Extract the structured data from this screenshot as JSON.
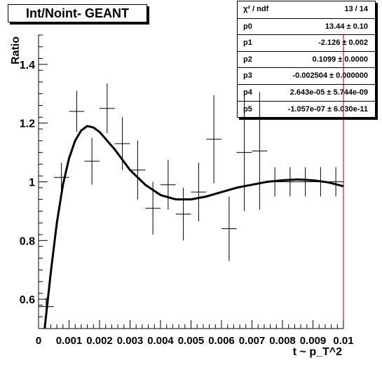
{
  "title": "Int/Noint- GEANT",
  "stats": {
    "rows": [
      {
        "name": "χ² / ndf",
        "value": "13 / 14"
      },
      {
        "name": "p0",
        "value": "13.44 ± 0.10"
      },
      {
        "name": "p1",
        "value": "-2.126 ± 0.002"
      },
      {
        "name": "p2",
        "value": "0.1099 ± 0.0000"
      },
      {
        "name": "p3",
        "value": "-0.002504 ± 0.000000"
      },
      {
        "name": "p4",
        "value": "2.643e-05 ± 5.744e-09"
      },
      {
        "name": "p5",
        "value": "-1.057e-07 ± 6.030e-11"
      }
    ]
  },
  "colors": {
    "line": "#000000",
    "frame": "#000000",
    "right_axis": "#8b0000"
  },
  "chart_data": {
    "type": "scatter",
    "title": "Int/Noint- GEANT",
    "xlabel": "t ~ p_T^2",
    "ylabel": "Ratio",
    "xlim": [
      0,
      0.01
    ],
    "ylim": [
      0.5,
      1.5
    ],
    "x_ticks": [
      0,
      0.001,
      0.002,
      0.003,
      0.004,
      0.005,
      0.006,
      0.007,
      0.008,
      0.009,
      0.01
    ],
    "x_tick_labels": [
      "0",
      "0.001",
      "0.002",
      "0.003",
      "0.004",
      "0.005",
      "0.006",
      "0.007",
      "0.008",
      "0.009",
      "0.01"
    ],
    "y_ticks": [
      0.6,
      0.8,
      1,
      1.2,
      1.4
    ],
    "y_tick_labels": [
      "0.6",
      "0.8",
      "1",
      "1.2",
      "1.4"
    ],
    "points": [
      {
        "x": 0.00025,
        "y": 0.575,
        "xerr": 0.00025,
        "yerr": 0.03
      },
      {
        "x": 0.00075,
        "y": 1.015,
        "xerr": 0.00025,
        "yerr": 0.05
      },
      {
        "x": 0.00125,
        "y": 1.24,
        "xerr": 0.00025,
        "yerr": 0.07
      },
      {
        "x": 0.00175,
        "y": 1.07,
        "xerr": 0.00025,
        "yerr": 0.08
      },
      {
        "x": 0.00225,
        "y": 1.25,
        "xerr": 0.00025,
        "yerr": 0.085
      },
      {
        "x": 0.00275,
        "y": 1.13,
        "xerr": 0.00025,
        "yerr": 0.09
      },
      {
        "x": 0.00325,
        "y": 1.04,
        "xerr": 0.00025,
        "yerr": 0.1
      },
      {
        "x": 0.00375,
        "y": 0.91,
        "xerr": 0.00025,
        "yerr": 0.09
      },
      {
        "x": 0.00425,
        "y": 0.99,
        "xerr": 0.00025,
        "yerr": 0.085
      },
      {
        "x": 0.00475,
        "y": 0.89,
        "xerr": 0.00025,
        "yerr": 0.09
      },
      {
        "x": 0.00525,
        "y": 0.965,
        "xerr": 0.00025,
        "yerr": 0.1
      },
      {
        "x": 0.00575,
        "y": 1.145,
        "xerr": 0.00025,
        "yerr": 0.15
      },
      {
        "x": 0.00625,
        "y": 0.84,
        "xerr": 0.00025,
        "yerr": 0.11
      },
      {
        "x": 0.00675,
        "y": 1.1,
        "xerr": 0.00025,
        "yerr": 0.2
      },
      {
        "x": 0.00725,
        "y": 1.105,
        "xerr": 0.00025,
        "yerr": 0.2
      },
      {
        "x": 0.00775,
        "y": 1.0,
        "xerr": 0.00025,
        "yerr": 0.05
      },
      {
        "x": 0.00825,
        "y": 1.0,
        "xerr": 0.00025,
        "yerr": 0.05
      },
      {
        "x": 0.00875,
        "y": 1.0,
        "xerr": 0.00025,
        "yerr": 0.05
      },
      {
        "x": 0.00925,
        "y": 1.0,
        "xerr": 0.00025,
        "yerr": 0.05
      },
      {
        "x": 0.00975,
        "y": 1.0,
        "xerr": 0.00025,
        "yerr": 0.05
      }
    ],
    "fit_curve": {
      "x": [
        0.0002,
        0.0004,
        0.0006,
        0.0008,
        0.001,
        0.0012,
        0.0014,
        0.0016,
        0.0018,
        0.002,
        0.0025,
        0.003,
        0.0035,
        0.004,
        0.0045,
        0.005,
        0.0055,
        0.006,
        0.0065,
        0.007,
        0.0075,
        0.008,
        0.0085,
        0.009,
        0.0095,
        0.01
      ],
      "y": [
        0.5,
        0.69,
        0.86,
        0.99,
        1.08,
        1.14,
        1.175,
        1.19,
        1.185,
        1.17,
        1.11,
        1.04,
        0.99,
        0.955,
        0.94,
        0.94,
        0.95,
        0.965,
        0.98,
        0.99,
        1.0,
        1.005,
        1.008,
        1.005,
        0.998,
        0.985
      ]
    }
  }
}
